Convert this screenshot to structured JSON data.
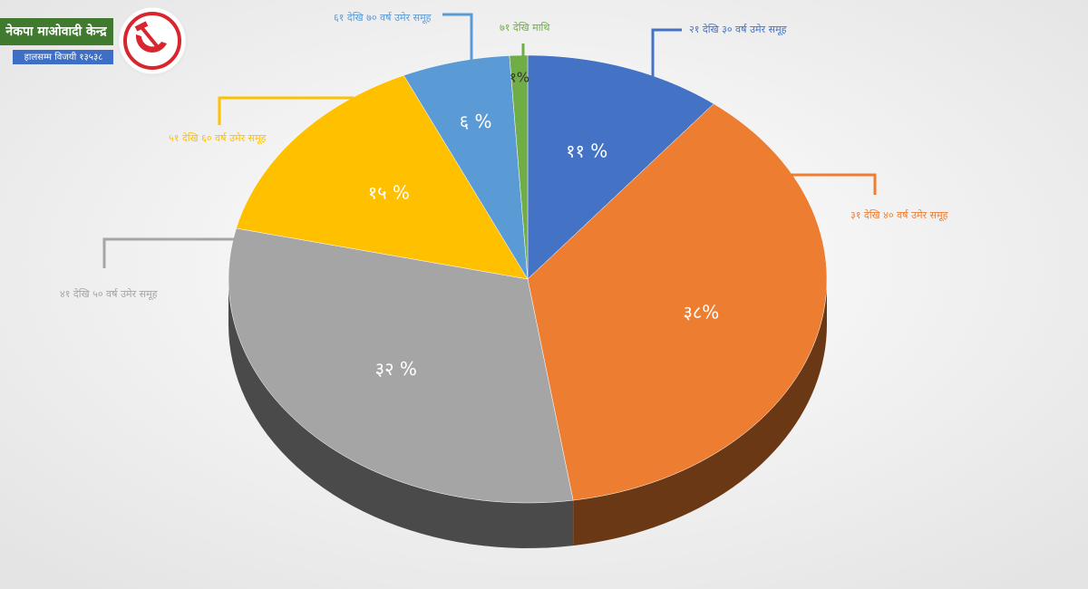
{
  "header": {
    "title": "नेकपा माओवादी केन्द्र",
    "subtitle": "हालसम्म विजयी १३५३८"
  },
  "chart_data": {
    "type": "pie",
    "categories": [
      "२१ देखि ३० वर्ष उमेर समूह",
      "३१ देखि ४० वर्ष उमेर समूह",
      "४१ देखि ५० वर्ष उमेर समूह",
      "५१ देखि ६० वर्ष उमेर समूह",
      "६१ देखि ७० वर्ष उमेर समूह",
      "७१ देखि माथि"
    ],
    "values": [
      11,
      38,
      32,
      15,
      6,
      1
    ],
    "value_labels": [
      "११ %",
      "३८%",
      "३२ %",
      "१५ %",
      "६ %",
      "१%"
    ],
    "colors": [
      "#4472c4",
      "#ed7d31",
      "#a5a5a5",
      "#ffc000",
      "#5b9bd5",
      "#70ad47"
    ]
  }
}
